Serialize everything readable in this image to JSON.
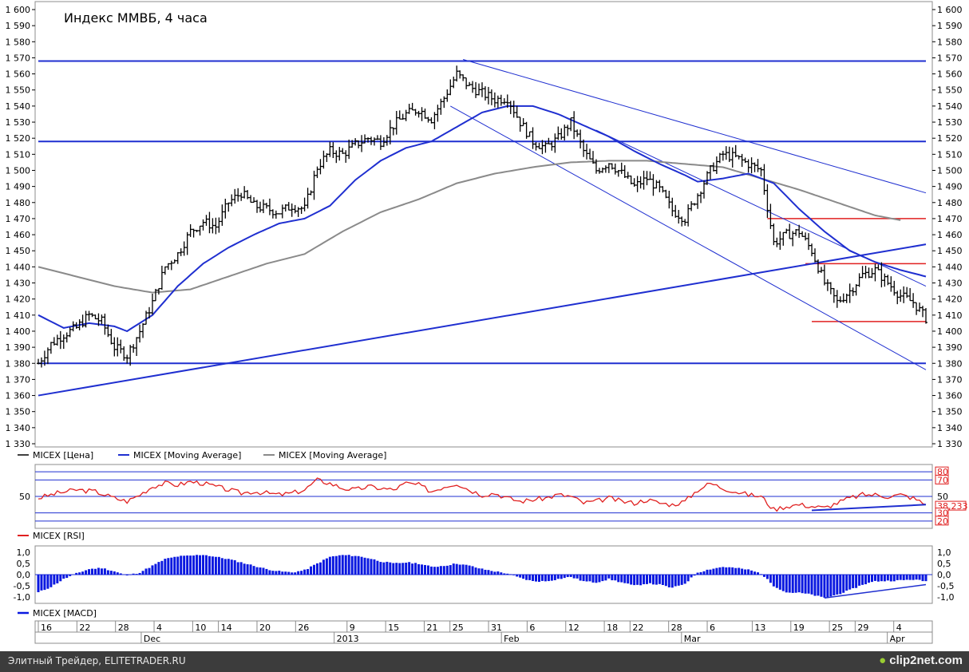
{
  "chart_data": {
    "type": "candlestick",
    "title": "Индекс ММВБ, 4 часа",
    "price_axis": {
      "ylim": [
        1330,
        1600
      ],
      "ticks": [
        "1 330",
        "1 340",
        "1 350",
        "1 360",
        "1 370",
        "1 380",
        "1 390",
        "1 400",
        "1 410",
        "1 420",
        "1 430",
        "1 440",
        "1 450",
        "1 460",
        "1 470",
        "1 480",
        "1 490",
        "1 500",
        "1 510",
        "1 520",
        "1 530",
        "1 540",
        "1 550",
        "1 560",
        "1 570",
        "1 580",
        "1 590",
        "1 600"
      ]
    },
    "time_axis": {
      "start_day_index": 0,
      "end_day_index": 112,
      "day_labels": [
        {
          "label": "16",
          "day": 0
        },
        {
          "label": "22",
          "day": 6
        },
        {
          "label": "28",
          "day": 12
        },
        {
          "label": "4",
          "day": 18
        },
        {
          "label": "10",
          "day": 24
        },
        {
          "label": "14",
          "day": 28
        },
        {
          "label": "20",
          "day": 34
        },
        {
          "label": "26",
          "day": 40
        },
        {
          "label": "9",
          "day": 48
        },
        {
          "label": "15",
          "day": 54
        },
        {
          "label": "21",
          "day": 60
        },
        {
          "label": "25",
          "day": 64
        },
        {
          "label": "31",
          "day": 70
        },
        {
          "label": "6",
          "day": 76
        },
        {
          "label": "12",
          "day": 82
        },
        {
          "label": "18",
          "day": 88
        },
        {
          "label": "22",
          "day": 92
        },
        {
          "label": "28",
          "day": 98
        },
        {
          "label": "6",
          "day": 104
        },
        {
          "label": "13",
          "day": 111
        },
        {
          "label": "19",
          "day": 117
        },
        {
          "label": "25",
          "day": 123
        },
        {
          "label": "29",
          "day": 127
        },
        {
          "label": "4",
          "day": 133
        }
      ],
      "month_labels": [
        {
          "label": "Dec",
          "day": 16
        },
        {
          "label": "2013",
          "day": 46
        },
        {
          "label": "Feb",
          "day": 72
        },
        {
          "label": "Mar",
          "day": 100
        },
        {
          "label": "Apr",
          "day": 132
        }
      ]
    },
    "price_series": {
      "name": "MICEX [Цена]",
      "color": "#000000",
      "anchors": [
        [
          0,
          1380
        ],
        [
          2,
          1392
        ],
        [
          4,
          1398
        ],
        [
          6,
          1402
        ],
        [
          8,
          1410
        ],
        [
          10,
          1406
        ],
        [
          12,
          1390
        ],
        [
          14,
          1385
        ],
        [
          16,
          1400
        ],
        [
          18,
          1418
        ],
        [
          20,
          1440
        ],
        [
          22,
          1448
        ],
        [
          24,
          1462
        ],
        [
          26,
          1468
        ],
        [
          28,
          1465
        ],
        [
          30,
          1480
        ],
        [
          32,
          1486
        ],
        [
          34,
          1478
        ],
        [
          36,
          1476
        ],
        [
          38,
          1474
        ],
        [
          40,
          1478
        ],
        [
          42,
          1476
        ],
        [
          44,
          1502
        ],
        [
          46,
          1512
        ],
        [
          48,
          1510
        ],
        [
          50,
          1516
        ],
        [
          52,
          1520
        ],
        [
          54,
          1518
        ],
        [
          56,
          1528
        ],
        [
          58,
          1535
        ],
        [
          60,
          1538
        ],
        [
          62,
          1532
        ],
        [
          64,
          1545
        ],
        [
          66,
          1560
        ],
        [
          68,
          1552
        ],
        [
          70,
          1548
        ],
        [
          72,
          1544
        ],
        [
          74,
          1545
        ],
        [
          76,
          1530
        ],
        [
          78,
          1518
        ],
        [
          80,
          1514
        ],
        [
          82,
          1520
        ],
        [
          84,
          1530
        ],
        [
          86,
          1512
        ],
        [
          88,
          1500
        ],
        [
          90,
          1505
        ],
        [
          92,
          1498
        ],
        [
          94,
          1490
        ],
        [
          96,
          1495
        ],
        [
          98,
          1488
        ],
        [
          100,
          1475
        ],
        [
          102,
          1470
        ],
        [
          104,
          1485
        ],
        [
          106,
          1500
        ],
        [
          108,
          1510
        ],
        [
          110,
          1508
        ],
        [
          112,
          1504
        ],
        [
          114,
          1500
        ],
        [
          116,
          1455
        ],
        [
          118,
          1460
        ],
        [
          120,
          1462
        ],
        [
          122,
          1450
        ],
        [
          124,
          1430
        ],
        [
          126,
          1418
        ],
        [
          128,
          1425
        ],
        [
          130,
          1435
        ],
        [
          132,
          1438
        ],
        [
          134,
          1430
        ],
        [
          136,
          1422
        ],
        [
          138,
          1418
        ],
        [
          140,
          1408
        ]
      ]
    },
    "moving_average_fast": {
      "name": "MICEX [Moving Average]",
      "color": "#1f2fd0",
      "points": [
        [
          0,
          1410
        ],
        [
          4,
          1402
        ],
        [
          8,
          1405
        ],
        [
          12,
          1403
        ],
        [
          14,
          1400
        ],
        [
          18,
          1410
        ],
        [
          22,
          1428
        ],
        [
          26,
          1442
        ],
        [
          30,
          1452
        ],
        [
          34,
          1460
        ],
        [
          38,
          1467
        ],
        [
          42,
          1470
        ],
        [
          46,
          1478
        ],
        [
          50,
          1494
        ],
        [
          54,
          1506
        ],
        [
          58,
          1514
        ],
        [
          62,
          1518
        ],
        [
          66,
          1527
        ],
        [
          70,
          1536
        ],
        [
          74,
          1540
        ],
        [
          78,
          1540
        ],
        [
          82,
          1535
        ],
        [
          86,
          1528
        ],
        [
          90,
          1521
        ],
        [
          94,
          1512
        ],
        [
          98,
          1504
        ],
        [
          102,
          1497
        ],
        [
          104,
          1493
        ],
        [
          108,
          1495
        ],
        [
          112,
          1498
        ],
        [
          116,
          1492
        ],
        [
          120,
          1476
        ],
        [
          124,
          1462
        ],
        [
          128,
          1450
        ],
        [
          132,
          1443
        ],
        [
          136,
          1438
        ],
        [
          140,
          1434
        ]
      ]
    },
    "moving_average_slow": {
      "name": "MICEX [Moving Average]",
      "color": "#8a8a8a",
      "points": [
        [
          0,
          1440
        ],
        [
          6,
          1434
        ],
        [
          12,
          1428
        ],
        [
          18,
          1424
        ],
        [
          24,
          1426
        ],
        [
          30,
          1434
        ],
        [
          36,
          1442
        ],
        [
          42,
          1448
        ],
        [
          48,
          1462
        ],
        [
          54,
          1474
        ],
        [
          60,
          1482
        ],
        [
          66,
          1492
        ],
        [
          72,
          1498
        ],
        [
          78,
          1502
        ],
        [
          84,
          1505
        ],
        [
          90,
          1506
        ],
        [
          96,
          1506
        ],
        [
          102,
          1504
        ],
        [
          108,
          1502
        ],
        [
          114,
          1495
        ],
        [
          120,
          1488
        ],
        [
          126,
          1480
        ],
        [
          132,
          1472
        ],
        [
          136,
          1469
        ]
      ]
    },
    "horizontal_levels": [
      {
        "value": 1568,
        "color": "#1f2fd0",
        "from_day": 0,
        "to_day": 140
      },
      {
        "value": 1518,
        "color": "#1f2fd0",
        "from_day": 0,
        "to_day": 140
      },
      {
        "value": 1380,
        "color": "#1f2fd0",
        "from_day": 0,
        "to_day": 140
      },
      {
        "value": 1470,
        "color": "#e02020",
        "from_day": 115,
        "to_day": 140
      },
      {
        "value": 1442,
        "color": "#e02020",
        "from_day": 121,
        "to_day": 140
      },
      {
        "value": 1406,
        "color": "#e02020",
        "from_day": 122,
        "to_day": 140
      }
    ],
    "trend_lines": [
      {
        "from": [
          0,
          1360
        ],
        "to": [
          140,
          1454
        ],
        "color": "#1f2fd0",
        "width": 2
      },
      {
        "from": [
          67,
          1569
        ],
        "to": [
          140,
          1486
        ],
        "color": "#1f2fd0",
        "width": 1
      },
      {
        "from": [
          65,
          1540
        ],
        "to": [
          140,
          1376
        ],
        "color": "#1f2fd0",
        "width": 1
      },
      {
        "from": [
          88,
          1525
        ],
        "to": [
          140,
          1428
        ],
        "color": "#1f2fd0",
        "width": 1
      }
    ],
    "rsi": {
      "name": "MICEX [RSI]",
      "color": "#e02020",
      "last_value": "38,233",
      "ylim": [
        15,
        85
      ],
      "levels": [
        20,
        30,
        50,
        70,
        80
      ],
      "points": [
        [
          0,
          48
        ],
        [
          3,
          54
        ],
        [
          6,
          58
        ],
        [
          9,
          56
        ],
        [
          12,
          48
        ],
        [
          14,
          44
        ],
        [
          16,
          52
        ],
        [
          18,
          62
        ],
        [
          20,
          66
        ],
        [
          22,
          64
        ],
        [
          24,
          68
        ],
        [
          26,
          66
        ],
        [
          28,
          62
        ],
        [
          30,
          58
        ],
        [
          32,
          54
        ],
        [
          34,
          56
        ],
        [
          36,
          54
        ],
        [
          38,
          52
        ],
        [
          40,
          54
        ],
        [
          42,
          58
        ],
        [
          44,
          70
        ],
        [
          46,
          66
        ],
        [
          48,
          60
        ],
        [
          50,
          58
        ],
        [
          52,
          62
        ],
        [
          54,
          60
        ],
        [
          56,
          58
        ],
        [
          58,
          66
        ],
        [
          60,
          64
        ],
        [
          62,
          56
        ],
        [
          64,
          62
        ],
        [
          66,
          66
        ],
        [
          68,
          58
        ],
        [
          70,
          52
        ],
        [
          72,
          54
        ],
        [
          74,
          48
        ],
        [
          76,
          44
        ],
        [
          78,
          46
        ],
        [
          80,
          48
        ],
        [
          82,
          52
        ],
        [
          84,
          50
        ],
        [
          86,
          42
        ],
        [
          88,
          44
        ],
        [
          90,
          48
        ],
        [
          92,
          44
        ],
        [
          94,
          42
        ],
        [
          96,
          46
        ],
        [
          98,
          42
        ],
        [
          100,
          40
        ],
        [
          102,
          44
        ],
        [
          104,
          58
        ],
        [
          106,
          66
        ],
        [
          108,
          60
        ],
        [
          110,
          56
        ],
        [
          112,
          52
        ],
        [
          114,
          50
        ],
        [
          116,
          34
        ],
        [
          118,
          38
        ],
        [
          120,
          40
        ],
        [
          122,
          38
        ],
        [
          124,
          36
        ],
        [
          126,
          42
        ],
        [
          128,
          48
        ],
        [
          130,
          52
        ],
        [
          132,
          52
        ],
        [
          134,
          50
        ],
        [
          136,
          52
        ],
        [
          138,
          48
        ],
        [
          140,
          40
        ]
      ],
      "trend": {
        "from": [
          122,
          33
        ],
        "to": [
          140,
          40
        ]
      }
    },
    "macd": {
      "name": "MICEX [MACD]",
      "color": "#0a18e0",
      "ylim": [
        -1.15,
        1.15
      ],
      "ticks": [
        "1,0",
        "0,5",
        "0,0",
        "-0,5",
        "-1,0"
      ],
      "points": [
        [
          0,
          -0.8
        ],
        [
          2,
          -0.55
        ],
        [
          4,
          -0.2
        ],
        [
          6,
          0.05
        ],
        [
          8,
          0.25
        ],
        [
          10,
          0.3
        ],
        [
          12,
          0.15
        ],
        [
          14,
          -0.05
        ],
        [
          16,
          0.1
        ],
        [
          18,
          0.4
        ],
        [
          20,
          0.7
        ],
        [
          22,
          0.82
        ],
        [
          24,
          0.85
        ],
        [
          26,
          0.9
        ],
        [
          28,
          0.8
        ],
        [
          30,
          0.7
        ],
        [
          32,
          0.55
        ],
        [
          34,
          0.4
        ],
        [
          36,
          0.25
        ],
        [
          38,
          0.15
        ],
        [
          40,
          0.1
        ],
        [
          42,
          0.2
        ],
        [
          44,
          0.5
        ],
        [
          46,
          0.8
        ],
        [
          48,
          0.88
        ],
        [
          50,
          0.85
        ],
        [
          52,
          0.75
        ],
        [
          54,
          0.6
        ],
        [
          56,
          0.5
        ],
        [
          58,
          0.55
        ],
        [
          60,
          0.5
        ],
        [
          62,
          0.35
        ],
        [
          64,
          0.4
        ],
        [
          66,
          0.5
        ],
        [
          68,
          0.4
        ],
        [
          70,
          0.25
        ],
        [
          72,
          0.15
        ],
        [
          74,
          0.05
        ],
        [
          76,
          -0.15
        ],
        [
          78,
          -0.3
        ],
        [
          80,
          -0.3
        ],
        [
          82,
          -0.2
        ],
        [
          84,
          -0.1
        ],
        [
          86,
          -0.3
        ],
        [
          88,
          -0.35
        ],
        [
          90,
          -0.2
        ],
        [
          92,
          -0.35
        ],
        [
          94,
          -0.5
        ],
        [
          96,
          -0.4
        ],
        [
          98,
          -0.45
        ],
        [
          100,
          -0.6
        ],
        [
          102,
          -0.4
        ],
        [
          104,
          0.1
        ],
        [
          106,
          0.25
        ],
        [
          108,
          0.35
        ],
        [
          110,
          0.3
        ],
        [
          112,
          0.22
        ],
        [
          114,
          0.05
        ],
        [
          116,
          -0.5
        ],
        [
          118,
          -0.8
        ],
        [
          120,
          -0.82
        ],
        [
          122,
          -0.9
        ],
        [
          124,
          -1.05
        ],
        [
          126,
          -0.9
        ],
        [
          128,
          -0.7
        ],
        [
          130,
          -0.45
        ],
        [
          132,
          -0.3
        ],
        [
          134,
          -0.28
        ],
        [
          136,
          -0.26
        ],
        [
          138,
          -0.22
        ],
        [
          140,
          -0.3
        ]
      ],
      "trend": {
        "from": [
          124,
          -1.05
        ],
        "to": [
          140,
          -0.45
        ]
      }
    }
  },
  "legends": {
    "price": "MICEX [Цена]",
    "ma_fast": "MICEX [Moving Average]",
    "ma_slow": "MICEX [Moving Average]",
    "rsi": "MICEX [RSI]",
    "macd": "MICEX [MACD]"
  },
  "rsi_axis_labels": {
    "left_mid": "50",
    "right": [
      "80",
      "70",
      "50",
      "38,233",
      "30",
      "20"
    ]
  },
  "footer": {
    "caption": "Элитный Трейдер, ELITETRADER.RU",
    "logo": "clip2net.com"
  }
}
